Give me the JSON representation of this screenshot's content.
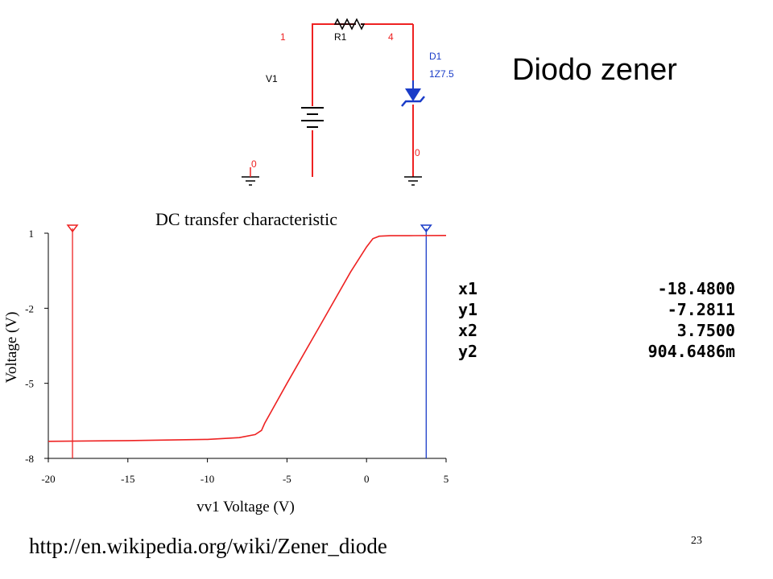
{
  "slide": {
    "title": "Diodo zener",
    "url": "http://en.wikipedia.org/wiki/Zener_diode",
    "page_number": "23"
  },
  "circuit": {
    "resistor_label": "R1",
    "source_label": "V1",
    "diode_label": "D1",
    "diode_model": "1Z7.5",
    "node_left_top": "1",
    "node_right_top": "4",
    "node_left_bottom": "0",
    "node_right_bottom": "0",
    "wire_color": "#ee2222",
    "component_color": "#000000",
    "diode_color": "#1a3cc8",
    "label_color": "#1a3cc8",
    "node_color": "#ee2222"
  },
  "cursors": [
    {
      "name": "x1",
      "value": "-18.4800"
    },
    {
      "name": "y1",
      "value": "-7.2811"
    },
    {
      "name": "x2",
      "value": "3.7500"
    },
    {
      "name": "y2",
      "value": "904.6486m"
    }
  ],
  "chart_data": {
    "type": "line",
    "title": "DC transfer characteristic",
    "xlabel": "vv1 Voltage (V)",
    "ylabel": "Voltage (V)",
    "xlim": [
      -20,
      5
    ],
    "ylim": [
      -8,
      1
    ],
    "x_ticks": [
      -20,
      -15,
      -10,
      -5,
      0,
      5
    ],
    "y_ticks": [
      1,
      -2,
      -5,
      -8
    ],
    "grid": false,
    "series": [
      {
        "color": "#ee2222",
        "x": [
          -20,
          -15,
          -10,
          -8,
          -7,
          -6.6,
          -6.4,
          -5,
          -3,
          -1,
          0,
          0.4,
          0.8,
          1.5,
          3,
          5
        ],
        "y": [
          -7.32,
          -7.29,
          -7.24,
          -7.17,
          -7.05,
          -6.88,
          -6.6,
          -5.0,
          -2.78,
          -0.55,
          0.45,
          0.78,
          0.88,
          0.9,
          0.905,
          0.91
        ]
      }
    ],
    "cursors": [
      {
        "x": -18.48,
        "color": "#ee2222"
      },
      {
        "x": 3.75,
        "color": "#1a3cc8"
      }
    ]
  }
}
